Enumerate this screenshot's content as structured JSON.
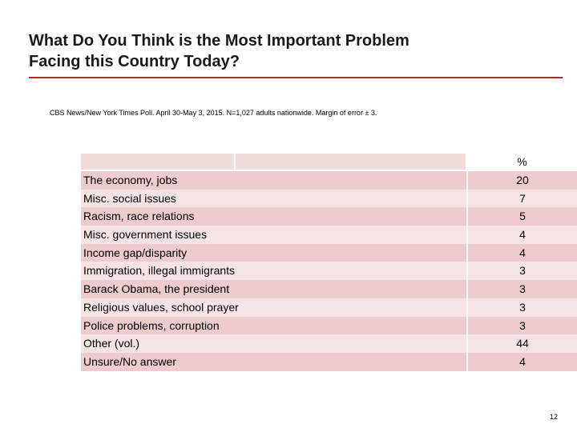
{
  "slide": {
    "title_line1": "What Do You Think is the Most Important Problem",
    "title_line2": "Facing this Country Today?",
    "source": "CBS News/New York Times Poll. April 30-May 3, 2015. N=1,027 adults nationwide. Margin of error ± 3.",
    "page_number": "12",
    "accent_color": "#b22a2e"
  },
  "table": {
    "value_header": "%",
    "rows": [
      {
        "label": "The economy, jobs",
        "value": "20"
      },
      {
        "label": "Misc. social issues",
        "value": "7"
      },
      {
        "label": "Racism, race relations",
        "value": "5"
      },
      {
        "label": "Misc. government issues",
        "value": "4"
      },
      {
        "label": "Income gap/disparity",
        "value": "4"
      },
      {
        "label": "Immigration, illegal immigrants",
        "value": "3"
      },
      {
        "label": "Barack Obama, the president",
        "value": "3"
      },
      {
        "label": "Religious values, school prayer",
        "value": "3"
      },
      {
        "label": "Police problems, corruption",
        "value": "3"
      },
      {
        "label": "Other (vol.)",
        "value": "44"
      },
      {
        "label": "Unsure/No answer",
        "value": "4"
      }
    ]
  }
}
